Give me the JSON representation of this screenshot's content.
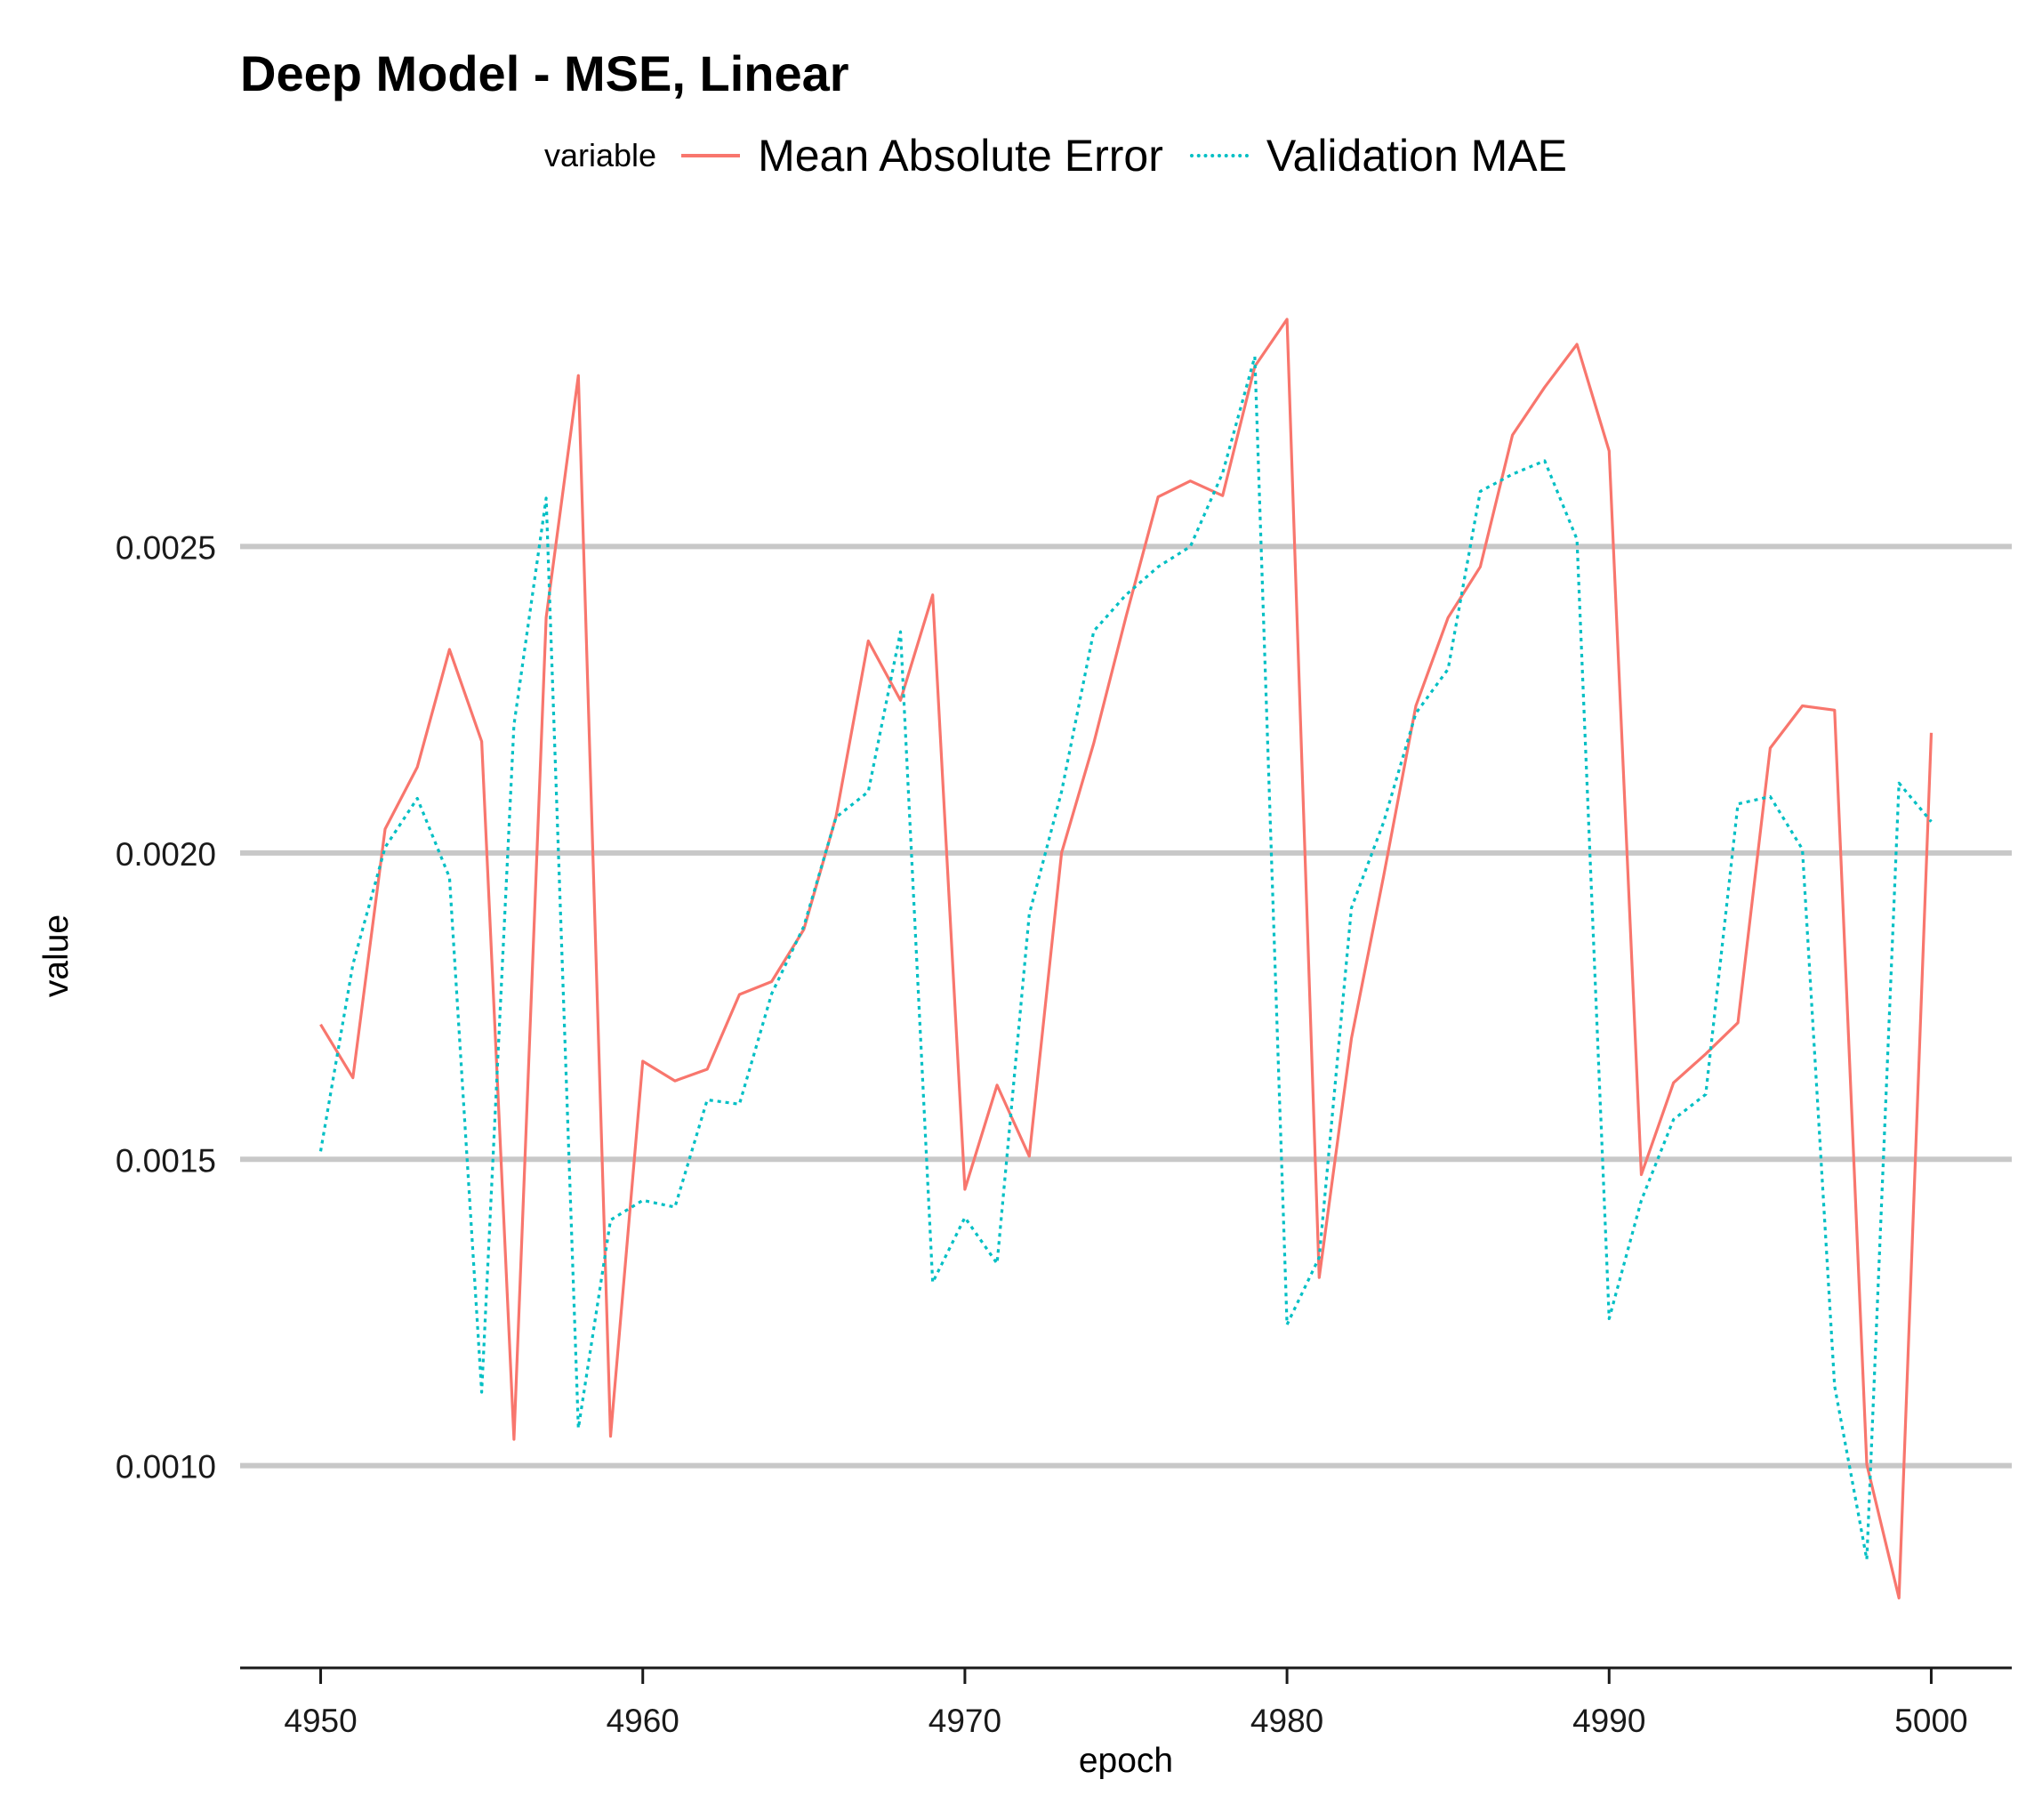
{
  "chart_data": {
    "type": "line",
    "title": "Deep Model - MSE, Linear",
    "xlabel": "epoch",
    "ylabel": "value",
    "legend": {
      "title": "variable",
      "position": "top"
    },
    "xlim": [
      4947.5,
      5002.5
    ],
    "ylim": [
      0.00067,
      0.003
    ],
    "xticks": [
      4950,
      4960,
      4970,
      4980,
      4990,
      5000
    ],
    "yticks": [
      0.001,
      0.0015,
      0.002,
      0.0025
    ],
    "xtick_labels": [
      "4950",
      "4960",
      "4970",
      "4980",
      "4990",
      "5000"
    ],
    "ytick_labels": [
      "0.0010",
      "0.0015",
      "0.0020",
      "0.0025"
    ],
    "grid": "horizontal major only",
    "x": [
      4950,
      4951,
      4952,
      4953,
      4954,
      4955,
      4956,
      4957,
      4958,
      4959,
      4960,
      4961,
      4962,
      4963,
      4964,
      4965,
      4966,
      4967,
      4968,
      4969,
      4970,
      4971,
      4972,
      4973,
      4974,
      4975,
      4976,
      4977,
      4978,
      4979,
      4980,
      4981,
      4982,
      4983,
      4984,
      4985,
      4986,
      4987,
      4988,
      4989,
      4990,
      4991,
      4992,
      4993,
      4994,
      4995,
      4996,
      4997,
      4998,
      4999,
      5000
    ],
    "series": [
      {
        "name": "Mean Absolute Error",
        "color": "#F8766D",
        "linestyle": "solid",
        "values": [
          0.00172,
          0.001633,
          0.002039,
          0.00214,
          0.002332,
          0.002182,
          0.001043,
          0.002384,
          0.002779,
          0.001048,
          0.00166,
          0.001628,
          0.001647,
          0.001769,
          0.00179,
          0.001875,
          0.002059,
          0.002346,
          0.002249,
          0.002421,
          0.001451,
          0.001621,
          0.001505,
          0.002,
          0.002179,
          0.002385,
          0.002581,
          0.002607,
          0.002583,
          0.002794,
          0.002871,
          0.001307,
          0.001697,
          0.001962,
          0.00224,
          0.002384,
          0.002467,
          0.002682,
          0.00276,
          0.00283,
          0.002656,
          0.001475,
          0.001625,
          0.001672,
          0.001723,
          0.002171,
          0.00224,
          0.002233,
          0.001002,
          0.000784,
          0.002196
        ]
      },
      {
        "name": "Validation MAE",
        "color": "#00BFC4",
        "linestyle": "dotted",
        "values": [
          0.001513,
          0.001818,
          0.002009,
          0.002089,
          0.00196,
          0.00112,
          0.002209,
          0.002579,
          0.001061,
          0.001401,
          0.001433,
          0.001422,
          0.001597,
          0.00159,
          0.00177,
          0.00188,
          0.002058,
          0.0021,
          0.002361,
          0.001299,
          0.001405,
          0.00133,
          0.0019,
          0.0021,
          0.002362,
          0.002421,
          0.002467,
          0.0025,
          0.00262,
          0.00281,
          0.00123,
          0.00134,
          0.00191,
          0.00205,
          0.002228,
          0.0023,
          0.00259,
          0.002618,
          0.00264,
          0.002512,
          0.00124,
          0.001433,
          0.001565,
          0.001606,
          0.00208,
          0.002092,
          0.002006,
          0.00113,
          0.000847,
          0.002114,
          0.002051
        ]
      }
    ]
  }
}
